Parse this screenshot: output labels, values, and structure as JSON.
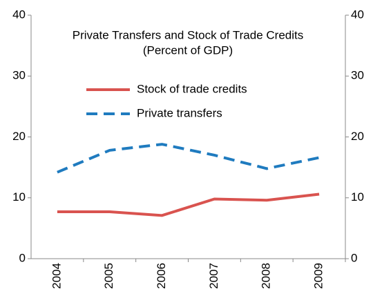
{
  "chart_data": {
    "type": "line",
    "title": "Private Transfers and Stock of Trade Credits",
    "subtitle": "(Percent of GDP)",
    "categories": [
      "2004",
      "2005",
      "2006",
      "2007",
      "2008",
      "2009"
    ],
    "series": [
      {
        "name": "Stock of trade credits",
        "color": "#d9534f",
        "dash": "solid",
        "values": [
          7.7,
          7.7,
          7.1,
          9.8,
          9.6,
          10.6
        ]
      },
      {
        "name": "Private transfers",
        "color": "#1f7bbf",
        "dash": "dashed",
        "values": [
          14.2,
          17.8,
          18.8,
          17.0,
          14.8,
          16.6
        ]
      }
    ],
    "ylim": [
      0,
      40
    ],
    "yticks": [
      0,
      10,
      20,
      30,
      40
    ],
    "y2lim": [
      0,
      40
    ],
    "y2ticks": [
      0,
      10,
      20,
      30,
      40
    ],
    "grid": false
  }
}
